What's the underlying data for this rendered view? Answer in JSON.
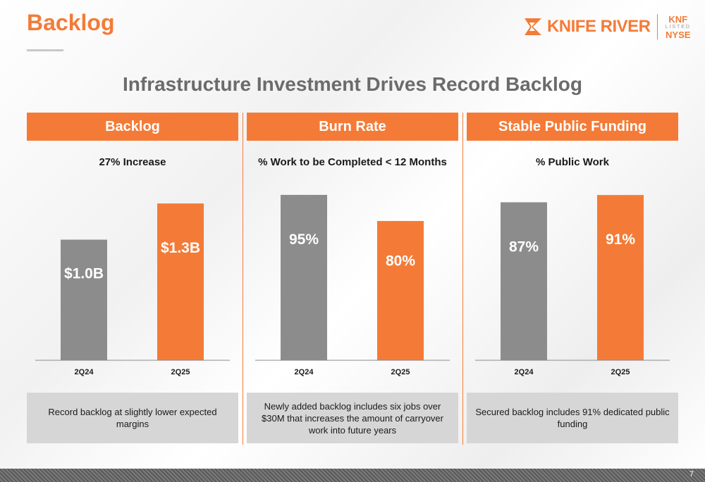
{
  "header": {
    "title": "Backlog",
    "logo_text": "KNIFE RIVER",
    "ticker": "KNF",
    "listed": "LISTED",
    "exchange": "NYSE"
  },
  "headline": "Infrastructure Investment Drives Record Backlog",
  "colors": {
    "accent": "#f47b37",
    "gray_bar": "#8c8c8c",
    "note_bg": "#d6d6d6"
  },
  "panels": [
    {
      "header": "Backlog",
      "subtitle": "27% Increase",
      "note": "Record backlog at slightly lower expected margins"
    },
    {
      "header": "Burn Rate",
      "subtitle": "% Work to be Completed < 12 Months",
      "note": "Newly added backlog includes six jobs over $30M that increases the amount of carryover work into future years"
    },
    {
      "header": "Stable Public Funding",
      "subtitle": "% Public Work",
      "note": "Secured backlog includes 91% dedicated public funding"
    }
  ],
  "chart_data": [
    {
      "type": "bar",
      "title": "27% Increase",
      "categories": [
        "2Q24",
        "2Q25"
      ],
      "values": [
        1.0,
        1.3
      ],
      "labels": [
        "$1.0B",
        "$1.3B"
      ],
      "colors": [
        "#8c8c8c",
        "#f47b37"
      ],
      "ylim": [
        0,
        1.4
      ],
      "grid": false
    },
    {
      "type": "bar",
      "title": "% Work to be Completed < 12 Months",
      "categories": [
        "2Q24",
        "2Q25"
      ],
      "values": [
        95,
        80
      ],
      "labels": [
        "95%",
        "80%"
      ],
      "colors": [
        "#8c8c8c",
        "#f47b37"
      ],
      "ylim": [
        0,
        97
      ],
      "grid": false
    },
    {
      "type": "bar",
      "title": "% Public Work",
      "categories": [
        "2Q24",
        "2Q25"
      ],
      "values": [
        87,
        91
      ],
      "labels": [
        "87%",
        "91%"
      ],
      "colors": [
        "#8c8c8c",
        "#f47b37"
      ],
      "ylim": [
        0,
        93
      ],
      "grid": false
    }
  ],
  "footer": {
    "page_number": "7"
  }
}
